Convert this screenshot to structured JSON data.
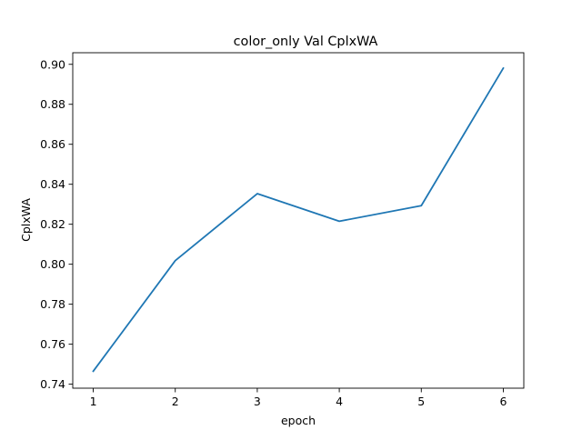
{
  "chart_data": {
    "type": "line",
    "title": "color_only Val CplxWA",
    "xlabel": "epoch",
    "ylabel": "CplxWA",
    "x": [
      1,
      2,
      3,
      4,
      5,
      6
    ],
    "series": [
      {
        "values": [
          0.7465,
          0.8018,
          0.8353,
          0.8215,
          0.8293,
          0.8981
        ],
        "color": "#1f77b4"
      }
    ],
    "xlim": [
      0.75,
      6.25
    ],
    "ylim": [
      0.738,
      0.9058
    ],
    "xticks": [
      1,
      2,
      3,
      4,
      5,
      6
    ],
    "xtick_labels": [
      "1",
      "2",
      "3",
      "4",
      "5",
      "6"
    ],
    "yticks": [
      0.74,
      0.76,
      0.78,
      0.8,
      0.82,
      0.84,
      0.86,
      0.88,
      0.9
    ],
    "ytick_labels": [
      "0.74",
      "0.76",
      "0.78",
      "0.80",
      "0.82",
      "0.84",
      "0.86",
      "0.88",
      "0.90"
    ],
    "grid": false,
    "legend": "none"
  }
}
